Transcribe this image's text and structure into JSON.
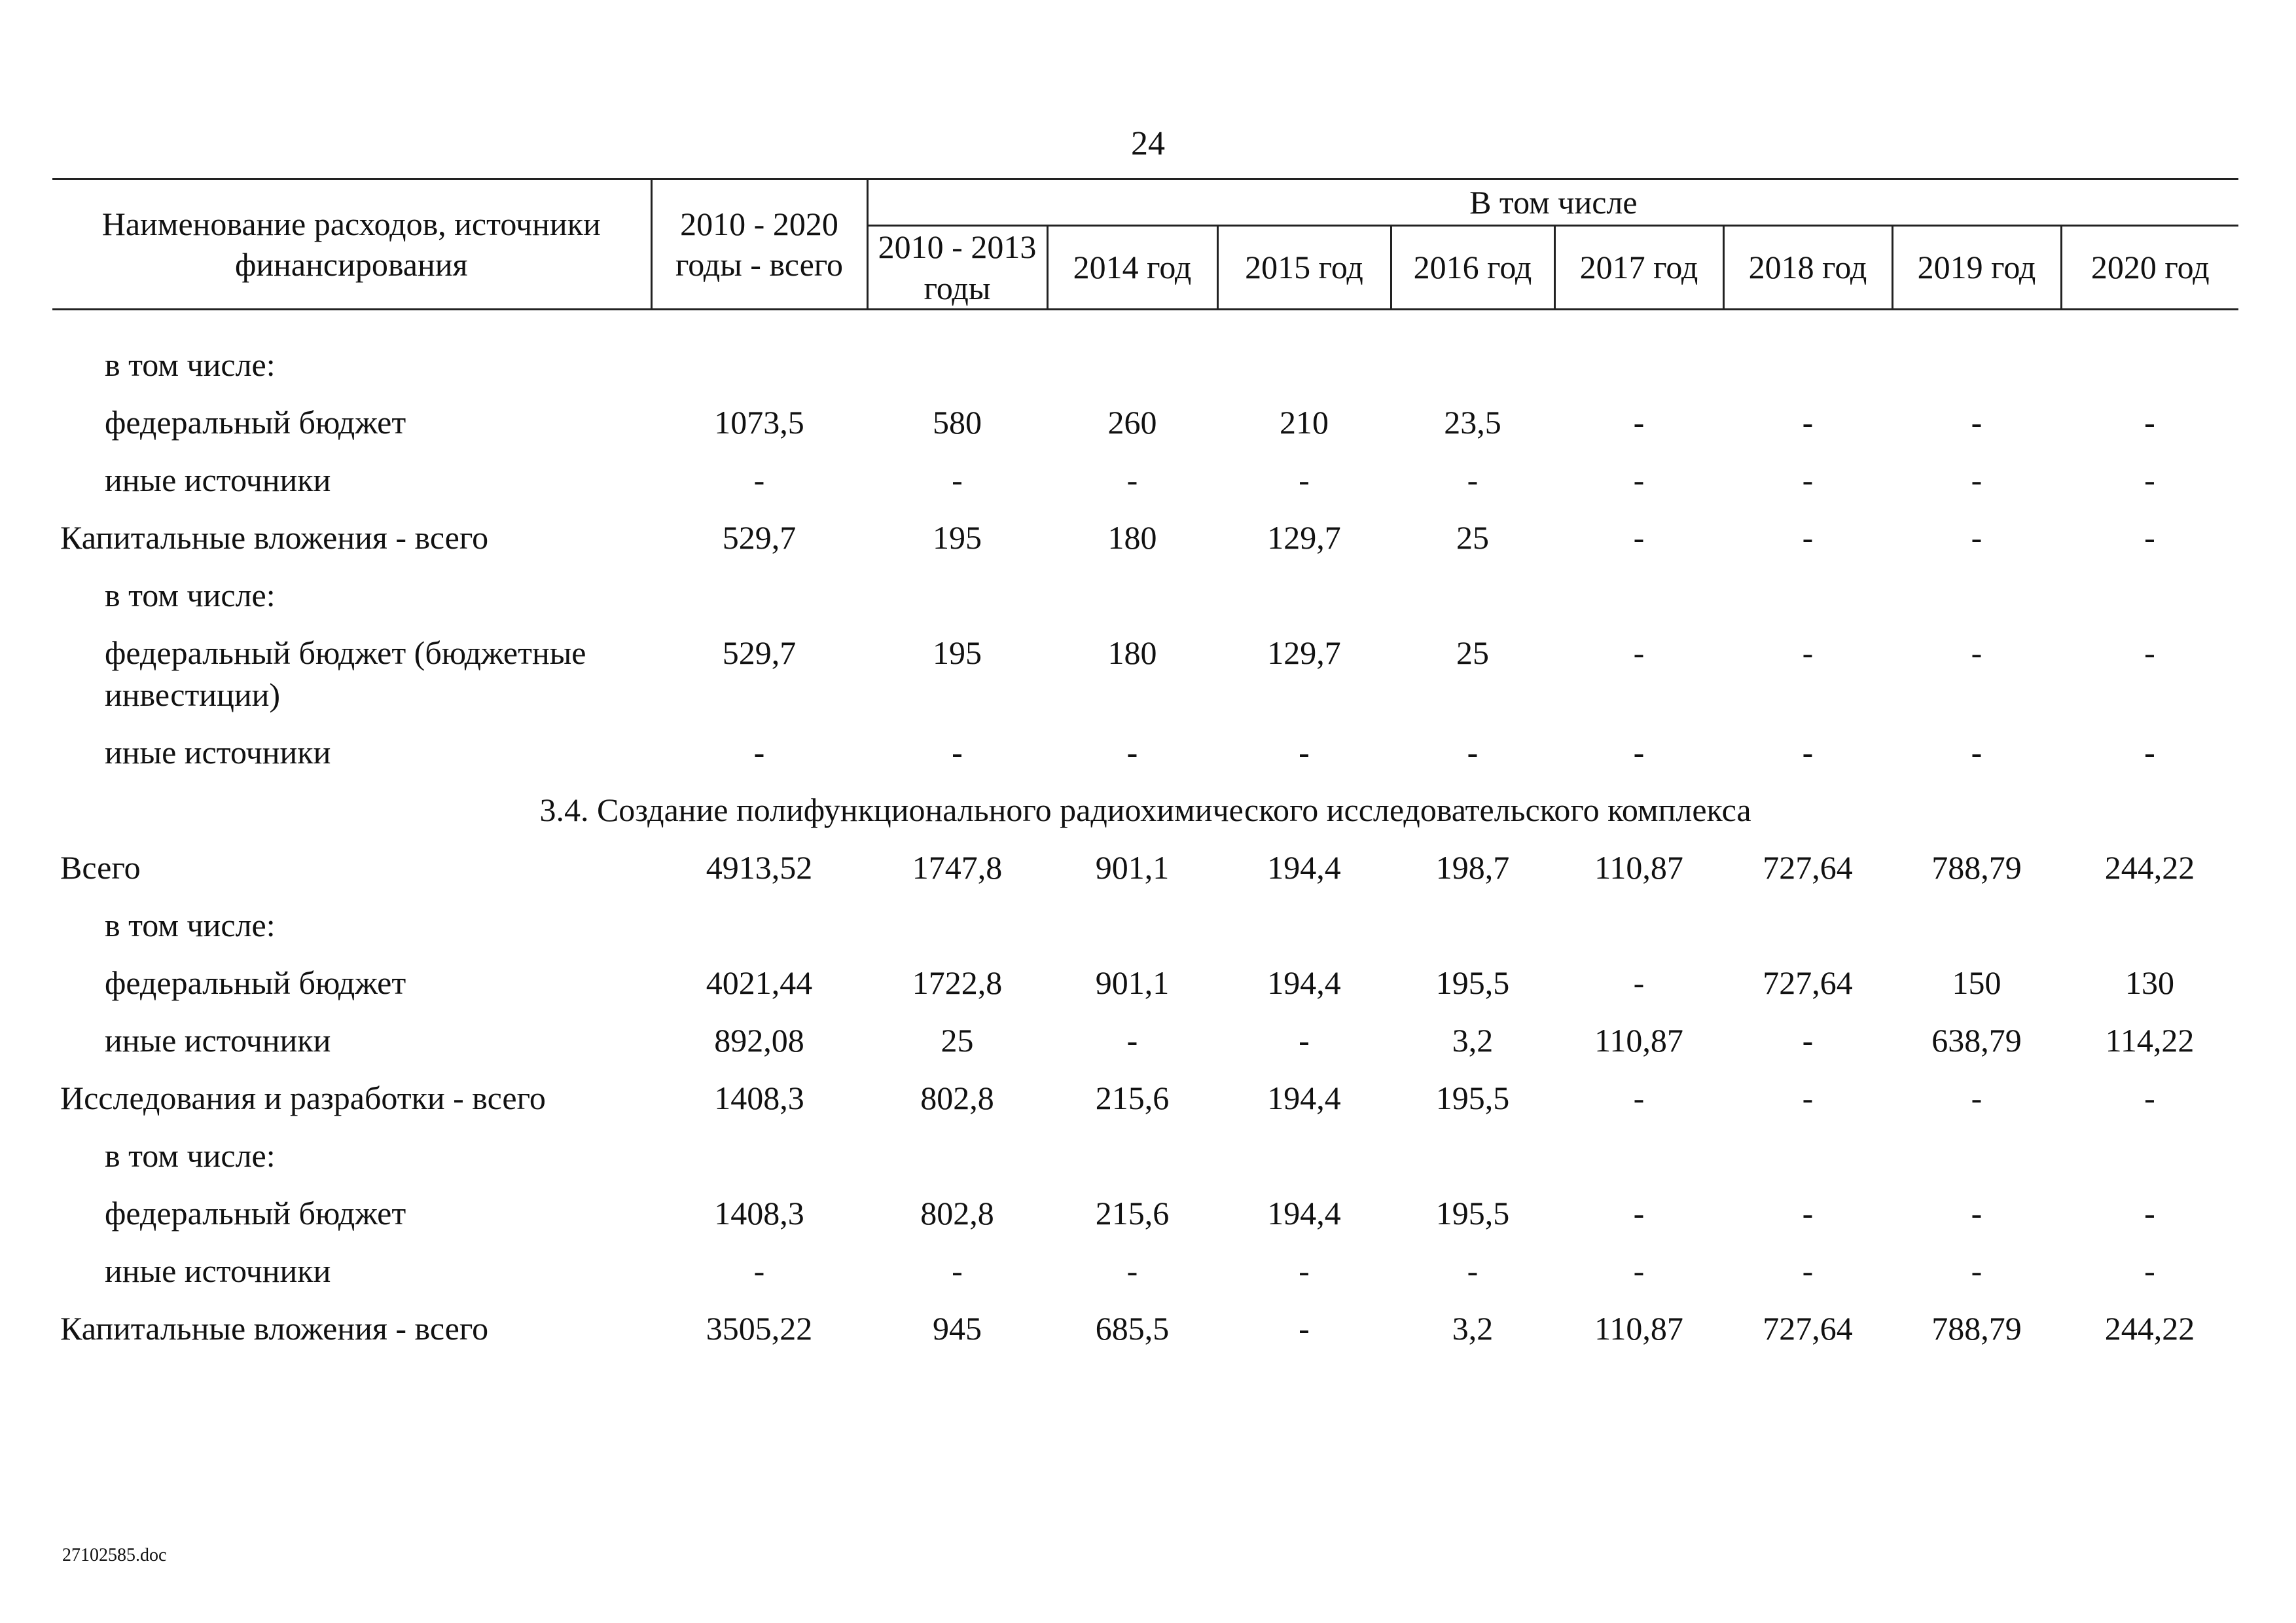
{
  "page_number": "24",
  "header": {
    "name_col": "Наименование расходов, источники финансирования",
    "total_col": "2010 - 2020 годы - всего",
    "group_label": "В том числе",
    "sub_cols": [
      "2010 - 2013 годы",
      "2014 год",
      "2015 год",
      "2016 год",
      "2017 год",
      "2018 год",
      "2019 год",
      "2020 год"
    ]
  },
  "rows": [
    {
      "label": "в том числе:",
      "indent": 1,
      "values": [
        "",
        "",
        "",
        "",
        "",
        "",
        "",
        "",
        ""
      ]
    },
    {
      "label": "федеральный бюджет",
      "indent": 1,
      "values": [
        "1073,5",
        "580",
        "260",
        "210",
        "23,5",
        "-",
        "-",
        "-",
        "-"
      ]
    },
    {
      "label": "иные источники",
      "indent": 1,
      "values": [
        "-",
        "-",
        "-",
        "-",
        "-",
        "-",
        "-",
        "-",
        "-"
      ]
    },
    {
      "label": "Капитальные вложения - всего",
      "indent": 0,
      "values": [
        "529,7",
        "195",
        "180",
        "129,7",
        "25",
        "-",
        "-",
        "-",
        "-"
      ]
    },
    {
      "label": "в том числе:",
      "indent": 1,
      "values": [
        "",
        "",
        "",
        "",
        "",
        "",
        "",
        "",
        ""
      ]
    },
    {
      "label": "федеральный бюджет (бюджетные инвестиции)",
      "indent": 1,
      "values": [
        "529,7",
        "195",
        "180",
        "129,7",
        "25",
        "-",
        "-",
        "-",
        "-"
      ]
    },
    {
      "label": "иные источники",
      "indent": 1,
      "values": [
        "-",
        "-",
        "-",
        "-",
        "-",
        "-",
        "-",
        "-",
        "-"
      ]
    },
    {
      "section": "3.4. Создание полифункционального радиохимического исследовательского комплекса"
    },
    {
      "label": "Всего",
      "indent": 0,
      "values": [
        "4913,52",
        "1747,8",
        "901,1",
        "194,4",
        "198,7",
        "110,87",
        "727,64",
        "788,79",
        "244,22"
      ]
    },
    {
      "label": "в том числе:",
      "indent": 1,
      "values": [
        "",
        "",
        "",
        "",
        "",
        "",
        "",
        "",
        ""
      ]
    },
    {
      "label": "федеральный бюджет",
      "indent": 1,
      "values": [
        "4021,44",
        "1722,8",
        "901,1",
        "194,4",
        "195,5",
        "-",
        "727,64",
        "150",
        "130"
      ]
    },
    {
      "label": "иные источники",
      "indent": 1,
      "values": [
        "892,08",
        "25",
        "-",
        "-",
        "3,2",
        "110,87",
        "-",
        "638,79",
        "114,22"
      ]
    },
    {
      "label": "Исследования и разработки - всего",
      "indent": 0,
      "values": [
        "1408,3",
        "802,8",
        "215,6",
        "194,4",
        "195,5",
        "-",
        "-",
        "-",
        "-"
      ]
    },
    {
      "label": "в том числе:",
      "indent": 1,
      "values": [
        "",
        "",
        "",
        "",
        "",
        "",
        "",
        "",
        ""
      ]
    },
    {
      "label": "федеральный бюджет",
      "indent": 1,
      "values": [
        "1408,3",
        "802,8",
        "215,6",
        "194,4",
        "195,5",
        "-",
        "-",
        "-",
        "-"
      ]
    },
    {
      "label": "иные источники",
      "indent": 1,
      "values": [
        "-",
        "-",
        "-",
        "-",
        "-",
        "-",
        "-",
        "-",
        "-"
      ]
    },
    {
      "label": "Капитальные вложения - всего",
      "indent": 0,
      "values": [
        "3505,22",
        "945",
        "685,5",
        "-",
        "3,2",
        "110,87",
        "727,64",
        "788,79",
        "244,22"
      ]
    }
  ],
  "footer": {
    "doc_ref": "27102585.doc"
  }
}
